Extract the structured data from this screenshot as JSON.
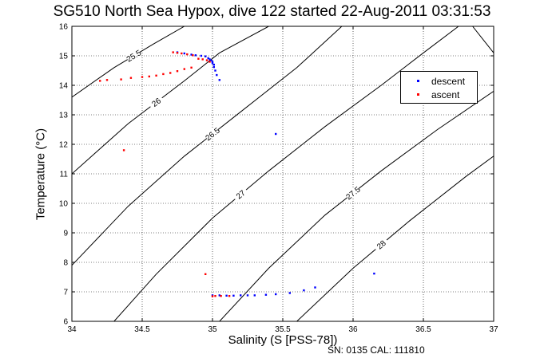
{
  "chart_data": {
    "type": "scatter",
    "title": "SG510 North Sea Hypox, dive 122 started 22-Aug-2011 03:31:53",
    "xlabel": "Salinity (S [PSS-78])",
    "ylabel": "Temperature (°C)",
    "xlim": [
      34,
      37
    ],
    "ylim": [
      6,
      16
    ],
    "x_ticks": [
      "34",
      "34.5",
      "35",
      "35.5",
      "36",
      "36.5",
      "37"
    ],
    "y_ticks": [
      "6",
      "7",
      "8",
      "9",
      "10",
      "11",
      "12",
      "13",
      "14",
      "15",
      "16"
    ],
    "grid": "dotted",
    "legend_position": "top-right",
    "contour_labels": [
      "25.5",
      "26",
      "26.5",
      "27",
      "27.5",
      "28"
    ],
    "contours": [
      {
        "label": "25.5",
        "points": [
          [
            34.0,
            13.6
          ],
          [
            34.3,
            14.6
          ],
          [
            34.58,
            15.4
          ],
          [
            34.8,
            16.0
          ]
        ]
      },
      {
        "label": "26",
        "points": [
          [
            34.0,
            11.0
          ],
          [
            34.4,
            12.7
          ],
          [
            34.8,
            14.15
          ],
          [
            35.05,
            15.1
          ],
          [
            35.4,
            16.0
          ]
        ]
      },
      {
        "label": "26.5",
        "points": [
          [
            34.0,
            7.9
          ],
          [
            34.4,
            9.9
          ],
          [
            34.8,
            11.6
          ],
          [
            35.2,
            13.1
          ],
          [
            35.6,
            14.6
          ],
          [
            35.92,
            16.0
          ]
        ]
      },
      {
        "label": "27",
        "points": [
          [
            34.3,
            6.0
          ],
          [
            34.6,
            7.6
          ],
          [
            35.0,
            9.5
          ],
          [
            35.4,
            11.1
          ],
          [
            35.8,
            12.6
          ],
          [
            36.2,
            14.0
          ],
          [
            36.5,
            15.1
          ],
          [
            36.75,
            16.0
          ]
        ]
      },
      {
        "label": "27.5",
        "points": [
          [
            35.05,
            6.0
          ],
          [
            35.4,
            7.8
          ],
          [
            35.8,
            9.6
          ],
          [
            36.2,
            11.1
          ],
          [
            36.6,
            12.5
          ],
          [
            37.0,
            13.8
          ]
        ]
      },
      {
        "label": "28",
        "points": [
          [
            35.6,
            6.0
          ],
          [
            36.0,
            7.8
          ],
          [
            36.4,
            9.4
          ],
          [
            36.8,
            10.9
          ],
          [
            37.0,
            11.6
          ]
        ]
      },
      {
        "label": "",
        "points": [
          [
            36.85,
            16.0
          ],
          [
            37.0,
            15.1
          ]
        ]
      }
    ],
    "series": [
      {
        "name": "descent",
        "color": "#0000ff",
        "points": [
          [
            34.75,
            15.12
          ],
          [
            34.8,
            15.08
          ],
          [
            34.85,
            15.04
          ],
          [
            34.88,
            15.02
          ],
          [
            34.92,
            15.0
          ],
          [
            34.95,
            14.98
          ],
          [
            34.97,
            14.92
          ],
          [
            34.98,
            14.88
          ],
          [
            34.99,
            14.84
          ],
          [
            35.0,
            14.8
          ],
          [
            35.0,
            14.75
          ],
          [
            35.01,
            14.7
          ],
          [
            35.01,
            14.62
          ],
          [
            35.02,
            14.5
          ],
          [
            35.03,
            14.35
          ],
          [
            35.05,
            14.18
          ],
          [
            35.45,
            12.35
          ],
          [
            35.0,
            6.88
          ],
          [
            35.05,
            6.88
          ],
          [
            35.1,
            6.87
          ],
          [
            35.15,
            6.87
          ],
          [
            35.2,
            6.88
          ],
          [
            35.25,
            6.88
          ],
          [
            35.3,
            6.88
          ],
          [
            35.38,
            6.9
          ],
          [
            35.45,
            6.92
          ],
          [
            35.55,
            6.96
          ],
          [
            35.65,
            7.05
          ],
          [
            35.73,
            7.15
          ],
          [
            36.15,
            7.62
          ]
        ]
      },
      {
        "name": "ascent",
        "color": "#ff0000",
        "points": [
          [
            34.72,
            15.12
          ],
          [
            34.75,
            15.1
          ],
          [
            34.78,
            15.08
          ],
          [
            34.82,
            15.05
          ],
          [
            34.86,
            15.02
          ],
          [
            34.9,
            14.9
          ],
          [
            34.93,
            14.88
          ],
          [
            34.96,
            14.85
          ],
          [
            34.98,
            14.8
          ],
          [
            34.85,
            14.6
          ],
          [
            34.8,
            14.55
          ],
          [
            34.75,
            14.48
          ],
          [
            34.7,
            14.42
          ],
          [
            34.65,
            14.38
          ],
          [
            34.6,
            14.33
          ],
          [
            34.55,
            14.3
          ],
          [
            34.5,
            14.28
          ],
          [
            34.42,
            14.25
          ],
          [
            34.35,
            14.2
          ],
          [
            34.25,
            14.18
          ],
          [
            34.2,
            14.15
          ],
          [
            34.37,
            11.8
          ],
          [
            34.95,
            7.6
          ],
          [
            35.0,
            6.85
          ],
          [
            35.02,
            6.86
          ],
          [
            35.06,
            6.86
          ],
          [
            35.12,
            6.86
          ]
        ]
      }
    ]
  },
  "footnote": "SN: 0135  CAL: 111810",
  "legend": {
    "descent": "descent",
    "ascent": "ascent"
  }
}
